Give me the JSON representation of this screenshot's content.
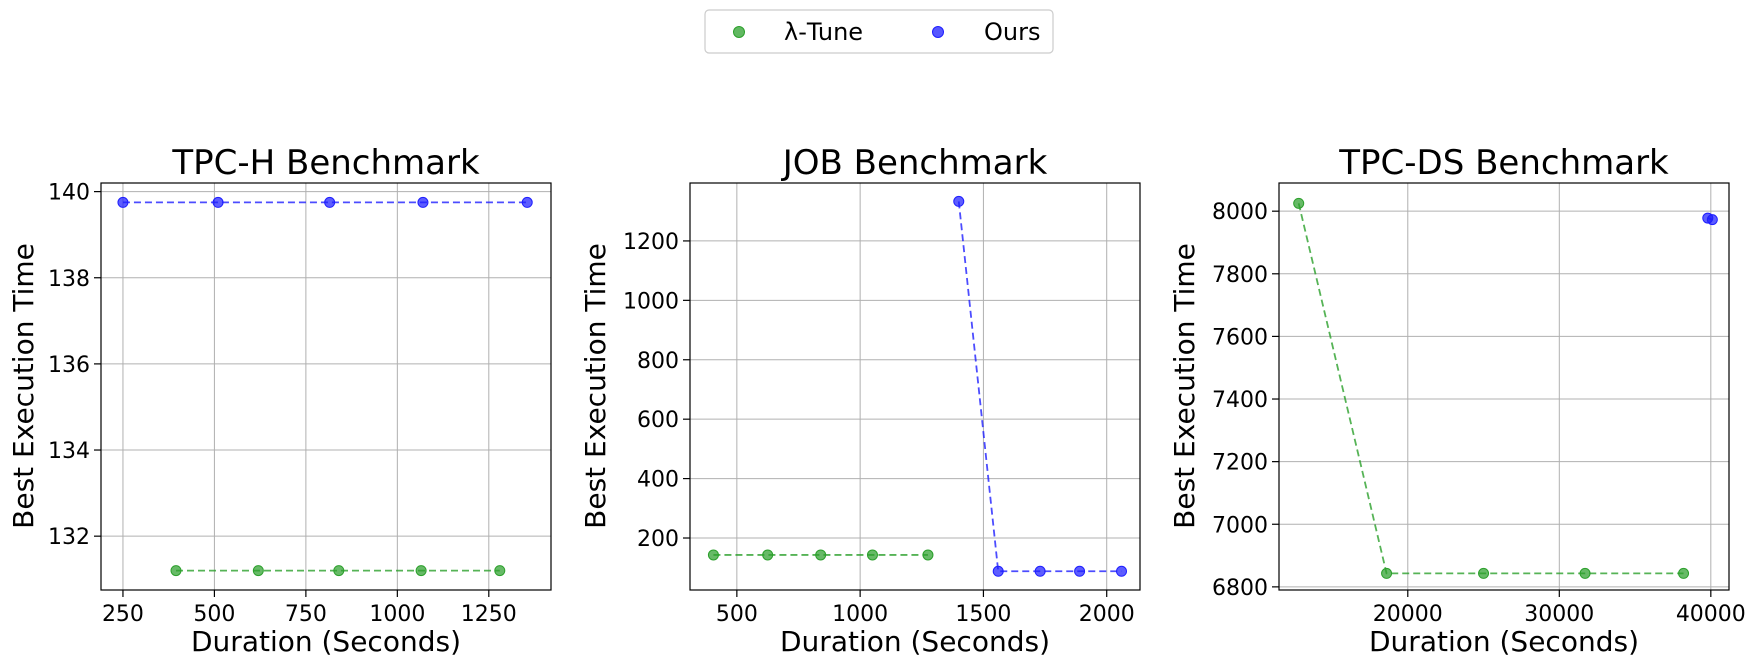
{
  "legend": {
    "entries": [
      {
        "label": "λ-Tune",
        "color": "#2ca02c"
      },
      {
        "label": "Ours",
        "color": "#1f1fff"
      }
    ]
  },
  "chart_data": [
    {
      "type": "scatter",
      "title": "TPC-H Benchmark",
      "xlabel": "Duration (Seconds)",
      "ylabel": "Best Execution Time",
      "xlim": [
        190,
        1420
      ],
      "ylim": [
        130.75,
        140.2
      ],
      "xticks": [
        250,
        500,
        750,
        1000,
        1250
      ],
      "xtick_labels": [
        "250",
        "500",
        "750",
        "1000",
        "1250"
      ],
      "yticks": [
        132,
        134,
        136,
        138,
        140
      ],
      "ytick_labels": [
        "132",
        "134",
        "136",
        "138",
        "140"
      ],
      "grid": true,
      "series": [
        {
          "name": "λ-Tune",
          "color": "#2ca02c",
          "x": [
            395,
            620,
            840,
            1065,
            1280
          ],
          "y": [
            131.2,
            131.2,
            131.2,
            131.2,
            131.2
          ]
        },
        {
          "name": "Ours",
          "color": "#1f1fff",
          "x": [
            250,
            510,
            815,
            1070,
            1355
          ],
          "y": [
            139.75,
            139.75,
            139.75,
            139.75,
            139.75
          ]
        }
      ]
    },
    {
      "type": "scatter",
      "title": "JOB Benchmark",
      "xlabel": "Duration (Seconds)",
      "ylabel": "Best Execution Time",
      "xlim": [
        310,
        2135
      ],
      "ylim": [
        25,
        1395
      ],
      "xticks": [
        500,
        1000,
        1500,
        2000
      ],
      "xtick_labels": [
        "500",
        "1000",
        "1500",
        "2000"
      ],
      "yticks": [
        200,
        400,
        600,
        800,
        1000,
        1200
      ],
      "ytick_labels": [
        "200",
        "400",
        "600",
        "800",
        "1000",
        "1200"
      ],
      "grid": true,
      "series": [
        {
          "name": "λ-Tune",
          "color": "#2ca02c",
          "x": [
            405,
            625,
            840,
            1050,
            1275
          ],
          "y": [
            143,
            143,
            143,
            143,
            143
          ]
        },
        {
          "name": "Ours",
          "color": "#1f1fff",
          "x": [
            1400,
            1560,
            1730,
            1890,
            2060
          ],
          "y": [
            1333,
            88,
            88,
            88,
            88
          ]
        }
      ]
    },
    {
      "type": "scatter",
      "title": "TPC-DS Benchmark",
      "xlabel": "Duration (Seconds)",
      "ylabel": "Best Execution Time",
      "xlim": [
        11500,
        41200
      ],
      "ylim": [
        6790,
        8090
      ],
      "xticks": [
        20000,
        30000,
        40000
      ],
      "xtick_labels": [
        "20000",
        "30000",
        "40000"
      ],
      "yticks": [
        6800,
        7000,
        7200,
        7400,
        7600,
        7800,
        8000
      ],
      "ytick_labels": [
        "6800",
        "7000",
        "7200",
        "7400",
        "7600",
        "7800",
        "8000"
      ],
      "grid": true,
      "series": [
        {
          "name": "λ-Tune",
          "color": "#2ca02c",
          "x": [
            12800,
            18600,
            25000,
            31700,
            38200
          ],
          "y": [
            8025,
            6843,
            6843,
            6843,
            6843
          ]
        },
        {
          "name": "Ours",
          "color": "#1f1fff",
          "x": [
            39800,
            40100
          ],
          "y": [
            7978,
            7973
          ]
        }
      ]
    }
  ]
}
